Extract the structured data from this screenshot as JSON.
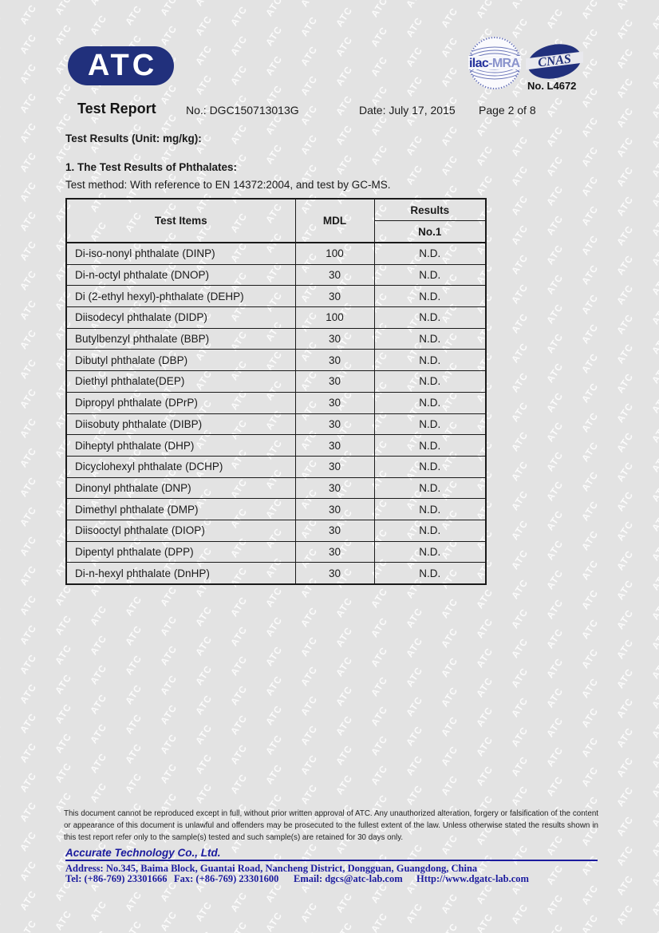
{
  "watermark": {
    "text": "ATC"
  },
  "header": {
    "logo_text": "ATC",
    "ilac_main": "ilac",
    "ilac_suffix": "-MRA",
    "cnas_label": "CNAS",
    "accreditation_no": "No. L4672",
    "report_title": "Test Report",
    "report_no": "No.: DGC150713013G",
    "date": "Date: July 17, 2015",
    "page": "Page 2 of 8"
  },
  "body": {
    "unit_line": "Test Results (Unit: mg/kg):",
    "section_title": "1.  The Test Results of Phthalates:",
    "method_line": "Test method: With reference to EN 14372:2004, and test by GC-MS."
  },
  "table": {
    "col_test_items": "Test Items",
    "col_mdl": "MDL",
    "col_results": "Results",
    "col_sample": "No.1",
    "rows": [
      {
        "item": "Di-iso-nonyl phthalate (DINP)",
        "mdl": "100",
        "result": "N.D."
      },
      {
        "item": "Di-n-octyl phthalate (DNOP)",
        "mdl": "30",
        "result": "N.D."
      },
      {
        "item": "Di (2-ethyl hexyl)-phthalate (DEHP)",
        "mdl": "30",
        "result": "N.D."
      },
      {
        "item": "Diisodecyl phthalate (DIDP)",
        "mdl": "100",
        "result": "N.D."
      },
      {
        "item": "Butylbenzyl phthalate (BBP)",
        "mdl": "30",
        "result": "N.D."
      },
      {
        "item": "Dibutyl phthalate (DBP)",
        "mdl": "30",
        "result": "N.D."
      },
      {
        "item": "Diethyl phthalate(DEP)",
        "mdl": "30",
        "result": "N.D."
      },
      {
        "item": "Dipropyl phthalate (DPrP)",
        "mdl": "30",
        "result": "N.D."
      },
      {
        "item": "Diisobuty phthalate (DIBP)",
        "mdl": "30",
        "result": "N.D."
      },
      {
        "item": "Diheptyl phthalate (DHP)",
        "mdl": "30",
        "result": "N.D."
      },
      {
        "item": "Dicyclohexyl phthalate (DCHP)",
        "mdl": "30",
        "result": "N.D."
      },
      {
        "item": "Dinonyl phthalate (DNP)",
        "mdl": "30",
        "result": "N.D."
      },
      {
        "item": "Dimethyl phthalate (DMP)",
        "mdl": "30",
        "result": "N.D."
      },
      {
        "item": "Diisooctyl phthalate (DIOP)",
        "mdl": "30",
        "result": "N.D."
      },
      {
        "item": "Dipentyl phthalate (DPP)",
        "mdl": "30",
        "result": "N.D."
      },
      {
        "item": "Di-n-hexyl phthalate (DnHP)",
        "mdl": "30",
        "result": "N.D."
      }
    ]
  },
  "footer": {
    "disclaimer": "This document cannot be reproduced except in full, without prior written approval of ATC. Any unauthorized alteration, forgery or falsification of the content or appearance of  this document is unlawful and offenders may be prosecuted to the fullest extent of the law. Unless otherwise stated the results shown in this test report refer only to the sample(s) tested and such sample(s) are retained for 30 days only.",
    "company": "Accurate Technology Co., Ltd.",
    "address": "Address: No.345, Baima Block, Guantai Road, Nancheng District, Dongguan, Guangdong, China",
    "tel": "Tel: (+86-769) 23301666",
    "fax": "Fax: (+86-769) 23301600",
    "email": "Email: dgcs@atc-lab.com",
    "web": "Http://www.dgatc-lab.com"
  },
  "colors": {
    "page_background": "#e3e3e3",
    "logo_navy": "#21307c",
    "footer_navy": "#1b1b9e",
    "table_border": "#1a1a1a",
    "watermark_white": "rgba(255,255,255,0.85)"
  }
}
